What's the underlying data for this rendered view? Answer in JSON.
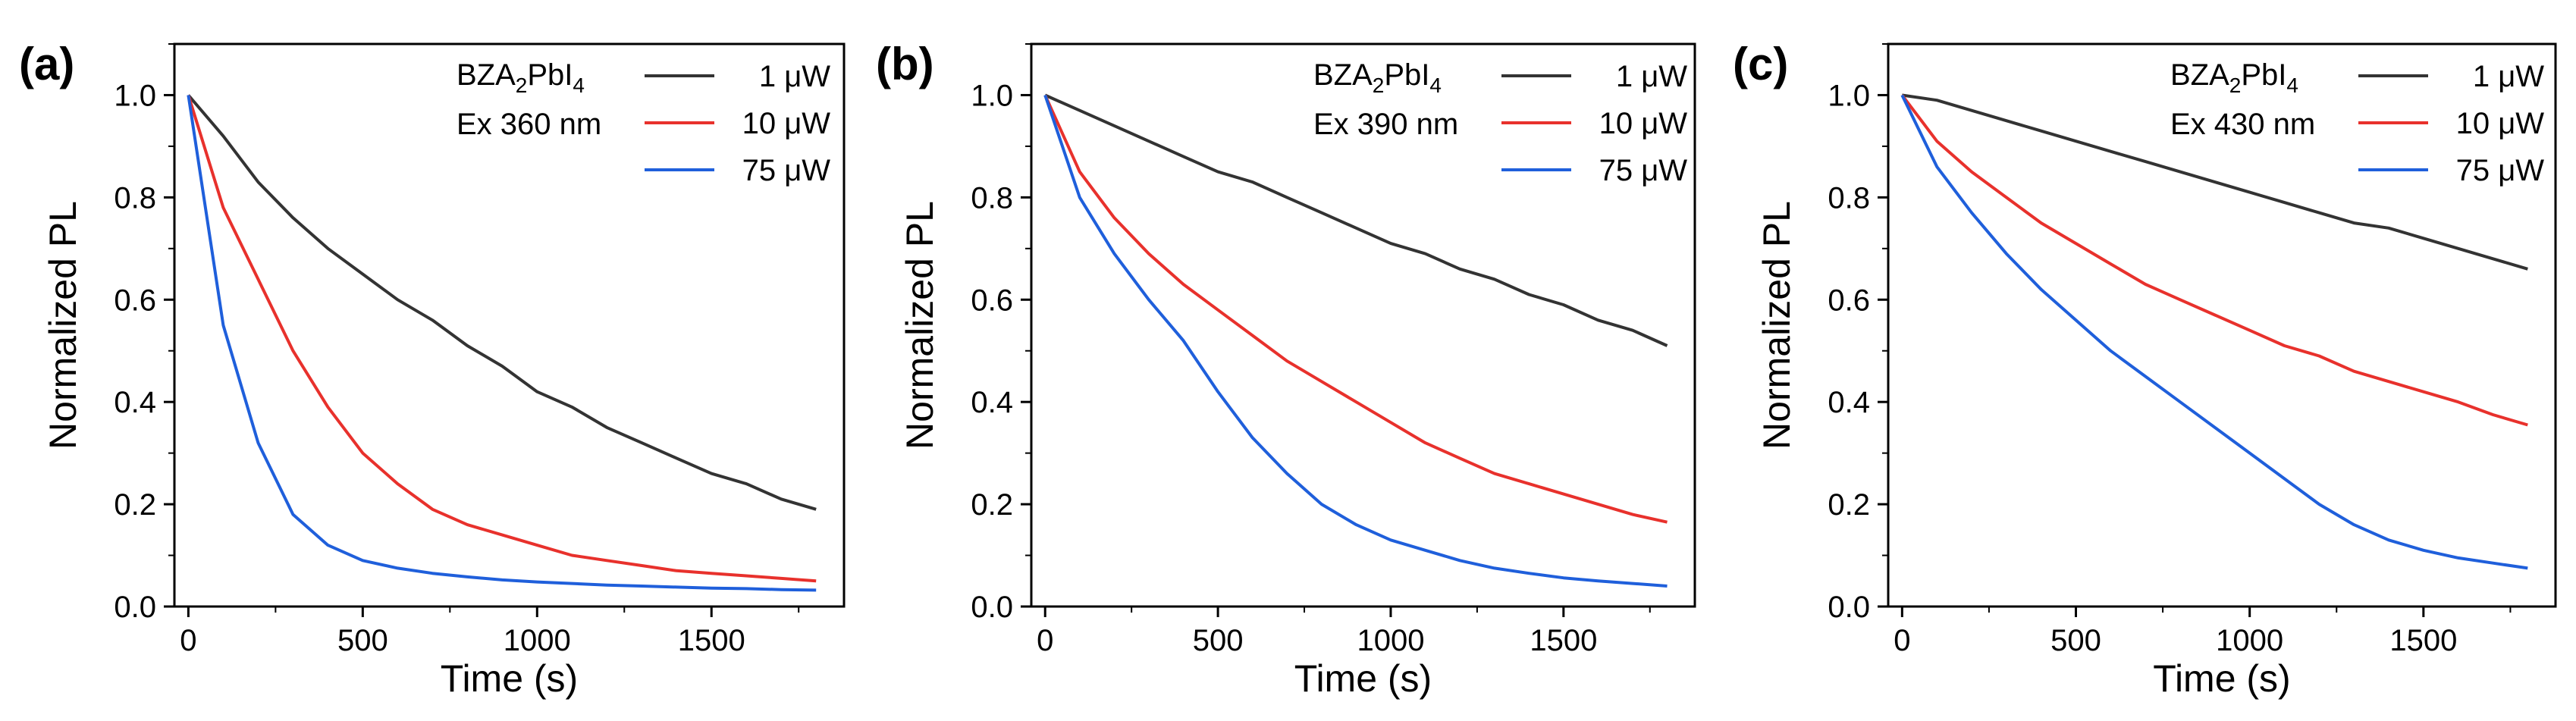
{
  "chart_data": [
    {
      "type": "line",
      "panel_label": "(a)",
      "sample": {
        "name": "BZA",
        "sub1": "2",
        "mid": "PbI",
        "sub2": "4"
      },
      "excitation": "Ex 360 nm",
      "xlabel": "Time (s)",
      "ylabel": "Normalized PL",
      "xlim": [
        -40,
        1880
      ],
      "ylim": [
        0.0,
        1.1
      ],
      "xticks": [
        "0",
        "500",
        "1000",
        "1500"
      ],
      "yticks": [
        "0.0",
        "0.2",
        "0.4",
        "0.6",
        "0.8",
        "1.0"
      ],
      "legend_position": "top-right",
      "series": [
        {
          "name": "1 μW",
          "color": "#333333",
          "x": [
            0,
            100,
            200,
            300,
            400,
            500,
            600,
            700,
            800,
            900,
            1000,
            1100,
            1200,
            1300,
            1400,
            1500,
            1600,
            1700,
            1800
          ],
          "y": [
            1.0,
            0.92,
            0.83,
            0.76,
            0.7,
            0.65,
            0.6,
            0.56,
            0.51,
            0.47,
            0.42,
            0.39,
            0.35,
            0.32,
            0.29,
            0.26,
            0.24,
            0.21,
            0.19
          ]
        },
        {
          "name": "10 μW",
          "color": "#e8312c",
          "x": [
            0,
            100,
            200,
            300,
            400,
            500,
            600,
            700,
            800,
            900,
            1000,
            1100,
            1200,
            1300,
            1400,
            1500,
            1600,
            1700,
            1800
          ],
          "y": [
            1.0,
            0.78,
            0.64,
            0.5,
            0.39,
            0.3,
            0.24,
            0.19,
            0.16,
            0.14,
            0.12,
            0.1,
            0.09,
            0.08,
            0.07,
            0.065,
            0.06,
            0.055,
            0.05
          ]
        },
        {
          "name": "75 μW",
          "color": "#1f5fdb",
          "x": [
            0,
            100,
            200,
            300,
            400,
            500,
            600,
            700,
            800,
            900,
            1000,
            1100,
            1200,
            1300,
            1400,
            1500,
            1600,
            1700,
            1800
          ],
          "y": [
            1.0,
            0.55,
            0.32,
            0.18,
            0.12,
            0.09,
            0.075,
            0.065,
            0.058,
            0.052,
            0.048,
            0.045,
            0.042,
            0.04,
            0.038,
            0.036,
            0.035,
            0.033,
            0.032
          ]
        }
      ]
    },
    {
      "type": "line",
      "panel_label": "(b)",
      "sample": {
        "name": "BZA",
        "sub1": "2",
        "mid": "PbI",
        "sub2": "4"
      },
      "excitation": "Ex 390 nm",
      "xlabel": "Time (s)",
      "ylabel": "Normalized PL",
      "xlim": [
        -40,
        1880
      ],
      "ylim": [
        0.0,
        1.1
      ],
      "xticks": [
        "0",
        "500",
        "1000",
        "1500"
      ],
      "yticks": [
        "0.0",
        "0.2",
        "0.4",
        "0.6",
        "0.8",
        "1.0"
      ],
      "legend_position": "top-right",
      "series": [
        {
          "name": "1 μW",
          "color": "#333333",
          "x": [
            0,
            100,
            200,
            300,
            400,
            500,
            600,
            700,
            800,
            900,
            1000,
            1100,
            1200,
            1300,
            1400,
            1500,
            1600,
            1700,
            1800
          ],
          "y": [
            1.0,
            0.97,
            0.94,
            0.91,
            0.88,
            0.85,
            0.83,
            0.8,
            0.77,
            0.74,
            0.71,
            0.69,
            0.66,
            0.64,
            0.61,
            0.59,
            0.56,
            0.54,
            0.51
          ]
        },
        {
          "name": "10 μW",
          "color": "#e8312c",
          "x": [
            0,
            100,
            200,
            300,
            400,
            500,
            600,
            700,
            800,
            900,
            1000,
            1100,
            1200,
            1300,
            1400,
            1500,
            1600,
            1700,
            1800
          ],
          "y": [
            1.0,
            0.85,
            0.76,
            0.69,
            0.63,
            0.58,
            0.53,
            0.48,
            0.44,
            0.4,
            0.36,
            0.32,
            0.29,
            0.26,
            0.24,
            0.22,
            0.2,
            0.18,
            0.165
          ]
        },
        {
          "name": "75 μW",
          "color": "#1f5fdb",
          "x": [
            0,
            100,
            200,
            300,
            400,
            500,
            600,
            700,
            800,
            900,
            1000,
            1100,
            1200,
            1300,
            1400,
            1500,
            1600,
            1700,
            1800
          ],
          "y": [
            1.0,
            0.8,
            0.69,
            0.6,
            0.52,
            0.42,
            0.33,
            0.26,
            0.2,
            0.16,
            0.13,
            0.11,
            0.09,
            0.075,
            0.065,
            0.056,
            0.05,
            0.045,
            0.04
          ]
        }
      ]
    },
    {
      "type": "line",
      "panel_label": "(c)",
      "sample": {
        "name": "BZA",
        "sub1": "2",
        "mid": "PbI",
        "sub2": "4"
      },
      "excitation": "Ex 430 nm",
      "xlabel": "Time (s)",
      "ylabel": "Normalized PL",
      "xlim": [
        -40,
        1880
      ],
      "ylim": [
        0.0,
        1.1
      ],
      "xticks": [
        "0",
        "500",
        "1000",
        "1500"
      ],
      "yticks": [
        "0.0",
        "0.2",
        "0.4",
        "0.6",
        "0.8",
        "1.0"
      ],
      "legend_position": "top-right",
      "series": [
        {
          "name": "1 μW",
          "color": "#333333",
          "x": [
            0,
            100,
            200,
            300,
            400,
            500,
            600,
            700,
            800,
            900,
            1000,
            1100,
            1200,
            1300,
            1400,
            1500,
            1600,
            1700,
            1800
          ],
          "y": [
            1.0,
            0.99,
            0.97,
            0.95,
            0.93,
            0.91,
            0.89,
            0.87,
            0.85,
            0.83,
            0.81,
            0.79,
            0.77,
            0.75,
            0.74,
            0.72,
            0.7,
            0.68,
            0.66
          ]
        },
        {
          "name": "10 μW",
          "color": "#e8312c",
          "x": [
            0,
            100,
            200,
            300,
            400,
            500,
            600,
            700,
            800,
            900,
            1000,
            1100,
            1200,
            1300,
            1400,
            1500,
            1600,
            1700,
            1800
          ],
          "y": [
            1.0,
            0.91,
            0.85,
            0.8,
            0.75,
            0.71,
            0.67,
            0.63,
            0.6,
            0.57,
            0.54,
            0.51,
            0.49,
            0.46,
            0.44,
            0.42,
            0.4,
            0.375,
            0.355
          ]
        },
        {
          "name": "75 μW",
          "color": "#1f5fdb",
          "x": [
            0,
            100,
            200,
            300,
            400,
            500,
            600,
            700,
            800,
            900,
            1000,
            1100,
            1200,
            1300,
            1400,
            1500,
            1600,
            1700,
            1800
          ],
          "y": [
            1.0,
            0.86,
            0.77,
            0.69,
            0.62,
            0.56,
            0.5,
            0.45,
            0.4,
            0.35,
            0.3,
            0.25,
            0.2,
            0.16,
            0.13,
            0.11,
            0.095,
            0.085,
            0.075
          ]
        }
      ]
    }
  ]
}
